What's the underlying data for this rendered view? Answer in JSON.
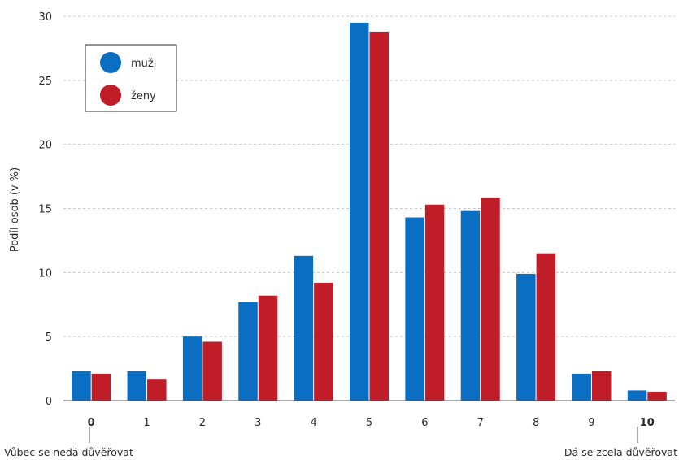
{
  "chart_data": {
    "type": "bar",
    "categories": [
      "0",
      "1",
      "2",
      "3",
      "4",
      "5",
      "6",
      "7",
      "8",
      "9",
      "10"
    ],
    "bold_categories": [
      "0",
      "10"
    ],
    "series": [
      {
        "name": "muži",
        "color": "#0a6fc2",
        "values": [
          2.3,
          2.3,
          5.0,
          7.7,
          11.3,
          29.5,
          14.3,
          14.8,
          9.9,
          2.1,
          0.8
        ]
      },
      {
        "name": "ženy",
        "color": "#c01d28",
        "values": [
          2.1,
          1.7,
          4.6,
          8.2,
          9.2,
          28.8,
          15.3,
          15.8,
          11.5,
          2.3,
          0.7
        ]
      }
    ],
    "ylabel": "Podíl osob (v %)",
    "xlabel": "",
    "ylim": [
      0,
      30
    ],
    "yticks": [
      "0",
      "5",
      "10",
      "15",
      "20",
      "25",
      "30"
    ],
    "grid": true,
    "legend_position": "top-left",
    "annotations": {
      "low_end": "Vůbec se nedá důvěřovat",
      "high_end": "Dá se zcela důvěřovat"
    }
  }
}
